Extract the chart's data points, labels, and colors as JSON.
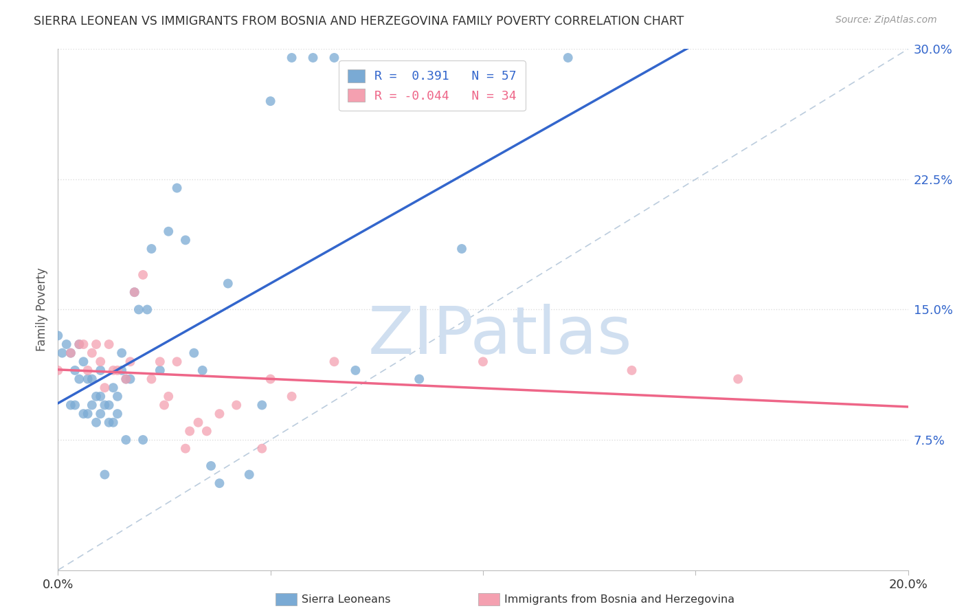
{
  "title": "SIERRA LEONEAN VS IMMIGRANTS FROM BOSNIA AND HERZEGOVINA FAMILY POVERTY CORRELATION CHART",
  "source": "Source: ZipAtlas.com",
  "ylabel": "Family Poverty",
  "xlim": [
    0.0,
    0.2
  ],
  "ylim": [
    0.0,
    0.3
  ],
  "background_color": "#ffffff",
  "grid_color": "#dddddd",
  "watermark_text": "ZIPatlas",
  "blue_color": "#7aaad4",
  "pink_color": "#f4a0b0",
  "blue_line_color": "#3366cc",
  "pink_line_color": "#ee6688",
  "diagonal_color": "#bbccdd",
  "legend_label1": "R =  0.391   N = 57",
  "legend_label2": "R = -0.044   N = 34",
  "bottom_label1": "Sierra Leoneans",
  "bottom_label2": "Immigrants from Bosnia and Herzegovina",
  "blue_points_x": [
    0.0,
    0.001,
    0.002,
    0.003,
    0.003,
    0.004,
    0.004,
    0.005,
    0.005,
    0.006,
    0.006,
    0.007,
    0.007,
    0.008,
    0.008,
    0.009,
    0.009,
    0.01,
    0.01,
    0.01,
    0.011,
    0.011,
    0.012,
    0.012,
    0.013,
    0.013,
    0.014,
    0.014,
    0.015,
    0.015,
    0.016,
    0.016,
    0.017,
    0.018,
    0.019,
    0.02,
    0.021,
    0.022,
    0.024,
    0.026,
    0.028,
    0.03,
    0.032,
    0.034,
    0.036,
    0.038,
    0.04,
    0.045,
    0.048,
    0.05,
    0.055,
    0.06,
    0.065,
    0.07,
    0.085,
    0.095,
    0.12
  ],
  "blue_points_y": [
    0.135,
    0.125,
    0.13,
    0.125,
    0.095,
    0.115,
    0.095,
    0.13,
    0.11,
    0.12,
    0.09,
    0.11,
    0.09,
    0.11,
    0.095,
    0.1,
    0.085,
    0.09,
    0.1,
    0.115,
    0.095,
    0.055,
    0.085,
    0.095,
    0.085,
    0.105,
    0.09,
    0.1,
    0.115,
    0.125,
    0.11,
    0.075,
    0.11,
    0.16,
    0.15,
    0.075,
    0.15,
    0.185,
    0.115,
    0.195,
    0.22,
    0.19,
    0.125,
    0.115,
    0.06,
    0.05,
    0.165,
    0.055,
    0.095,
    0.27,
    0.295,
    0.295,
    0.295,
    0.115,
    0.11,
    0.185,
    0.295
  ],
  "pink_points_x": [
    0.0,
    0.003,
    0.005,
    0.006,
    0.007,
    0.008,
    0.009,
    0.01,
    0.011,
    0.012,
    0.013,
    0.014,
    0.016,
    0.017,
    0.018,
    0.02,
    0.022,
    0.024,
    0.026,
    0.028,
    0.03,
    0.031,
    0.035,
    0.038,
    0.042,
    0.048,
    0.05,
    0.055,
    0.065,
    0.1,
    0.135,
    0.16,
    0.025,
    0.033
  ],
  "pink_points_y": [
    0.115,
    0.125,
    0.13,
    0.13,
    0.115,
    0.125,
    0.13,
    0.12,
    0.105,
    0.13,
    0.115,
    0.115,
    0.11,
    0.12,
    0.16,
    0.17,
    0.11,
    0.12,
    0.1,
    0.12,
    0.07,
    0.08,
    0.08,
    0.09,
    0.095,
    0.07,
    0.11,
    0.1,
    0.12,
    0.12,
    0.115,
    0.11,
    0.095,
    0.085
  ]
}
